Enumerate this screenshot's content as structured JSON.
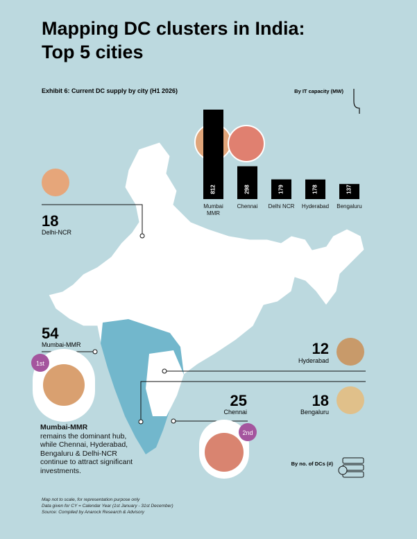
{
  "header": {
    "title_line1": "Mapping DC clusters in India:",
    "title_line2": "Top 5 cities"
  },
  "chart_data": {
    "type": "bar",
    "title": "Exhibit 6: Current DC supply by city (H1 2026)",
    "subtitle": "By IT capacity (MW)",
    "categories": [
      "Mumbai MMR",
      "Chennai",
      "Delhi NCR",
      "Hyderabad",
      "Bengaluru"
    ],
    "values": [
      812,
      298,
      179,
      178,
      137
    ],
    "color": "#000000"
  },
  "map": {
    "cities": [
      {
        "count": 18,
        "name": "Delhi-NCR"
      },
      {
        "count": 54,
        "name": "Mumbai-MMR",
        "rank": "1st"
      },
      {
        "count": 12,
        "name": "Hyderabad"
      },
      {
        "count": 25,
        "name": "Chennai",
        "rank": "2nd"
      },
      {
        "count": 18,
        "name": "Bengaluru"
      }
    ],
    "legend": "By no. of DCs (#)"
  },
  "note": {
    "lead": "Mumbai-MMR",
    "text": "remains the dominant hub, while Chennai, Hyderabad, Bengaluru & Delhi-NCR continue to attract significant investments."
  },
  "footnotes": [
    "Map not to scale, for representation purpose only",
    "Data given for CY = Calendar Year (1st January - 31st December)",
    "Source: Compiled by Anarock Research & Advisory"
  ]
}
